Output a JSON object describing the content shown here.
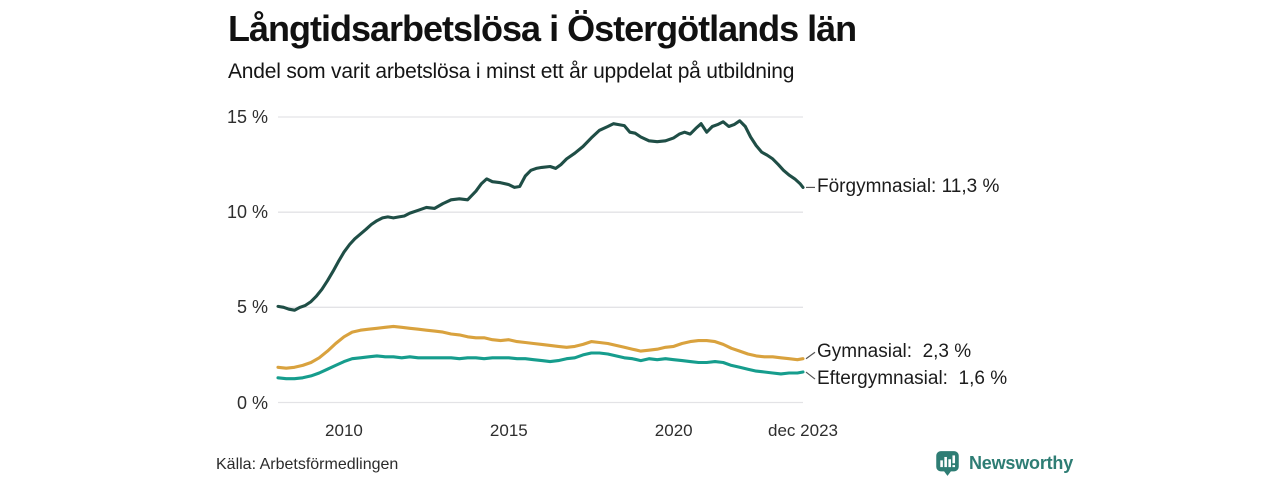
{
  "header": {
    "title": "Långtidsarbetslösa i Östergötlands län",
    "subtitle": "Andel som varit arbetslösa i minst ett år uppdelat på utbildning"
  },
  "chart_data": {
    "type": "line",
    "title": "Långtidsarbetslösa i Östergötlands län",
    "subtitle": "Andel som varit arbetslösa i minst ett år uppdelat på utbildning",
    "unit": "%",
    "grid": "horizontal",
    "legend_position": "right-end-labels",
    "x_axis": {
      "range": [
        2008.0,
        2023.92
      ],
      "ticks": [
        {
          "label": "2010",
          "year": 2010
        },
        {
          "label": "2015",
          "year": 2015
        },
        {
          "label": "2020",
          "year": 2020
        },
        {
          "label": "dec 2023",
          "year": 2023.92
        }
      ]
    },
    "y_axis": {
      "ylim": [
        0,
        15
      ],
      "ticks": [
        {
          "label": "0 %",
          "value": 0
        },
        {
          "label": "5 %",
          "value": 5
        },
        {
          "label": "10 %",
          "value": 10
        },
        {
          "label": "15 %",
          "value": 15
        }
      ]
    },
    "series": [
      {
        "name": "Förgymnasial",
        "end_label": "Förgymnasial: 11,3 %",
        "end_value": "11,3 %",
        "color": "#1f4e46",
        "points": [
          [
            2008.0,
            5.05
          ],
          [
            2008.17,
            5.0
          ],
          [
            2008.33,
            4.9
          ],
          [
            2008.5,
            4.85
          ],
          [
            2008.67,
            5.0
          ],
          [
            2008.83,
            5.1
          ],
          [
            2009.0,
            5.3
          ],
          [
            2009.17,
            5.6
          ],
          [
            2009.33,
            5.95
          ],
          [
            2009.5,
            6.4
          ],
          [
            2009.67,
            6.9
          ],
          [
            2009.83,
            7.4
          ],
          [
            2010.0,
            7.9
          ],
          [
            2010.17,
            8.3
          ],
          [
            2010.33,
            8.6
          ],
          [
            2010.5,
            8.85
          ],
          [
            2010.67,
            9.1
          ],
          [
            2010.83,
            9.35
          ],
          [
            2011.0,
            9.55
          ],
          [
            2011.17,
            9.7
          ],
          [
            2011.33,
            9.75
          ],
          [
            2011.5,
            9.7
          ],
          [
            2011.67,
            9.75
          ],
          [
            2011.83,
            9.8
          ],
          [
            2012.0,
            9.95
          ],
          [
            2012.25,
            10.1
          ],
          [
            2012.5,
            10.25
          ],
          [
            2012.75,
            10.2
          ],
          [
            2013.0,
            10.45
          ],
          [
            2013.25,
            10.65
          ],
          [
            2013.5,
            10.7
          ],
          [
            2013.75,
            10.65
          ],
          [
            2014.0,
            11.1
          ],
          [
            2014.17,
            11.5
          ],
          [
            2014.33,
            11.75
          ],
          [
            2014.5,
            11.6
          ],
          [
            2014.75,
            11.55
          ],
          [
            2015.0,
            11.45
          ],
          [
            2015.17,
            11.3
          ],
          [
            2015.33,
            11.35
          ],
          [
            2015.5,
            11.9
          ],
          [
            2015.67,
            12.2
          ],
          [
            2015.83,
            12.3
          ],
          [
            2016.0,
            12.35
          ],
          [
            2016.25,
            12.4
          ],
          [
            2016.42,
            12.3
          ],
          [
            2016.58,
            12.5
          ],
          [
            2016.75,
            12.8
          ],
          [
            2017.0,
            13.1
          ],
          [
            2017.25,
            13.45
          ],
          [
            2017.5,
            13.9
          ],
          [
            2017.75,
            14.3
          ],
          [
            2018.0,
            14.5
          ],
          [
            2018.17,
            14.65
          ],
          [
            2018.33,
            14.6
          ],
          [
            2018.5,
            14.55
          ],
          [
            2018.67,
            14.2
          ],
          [
            2018.83,
            14.15
          ],
          [
            2019.0,
            13.95
          ],
          [
            2019.25,
            13.75
          ],
          [
            2019.5,
            13.7
          ],
          [
            2019.75,
            13.75
          ],
          [
            2020.0,
            13.9
          ],
          [
            2020.17,
            14.1
          ],
          [
            2020.33,
            14.2
          ],
          [
            2020.5,
            14.1
          ],
          [
            2020.67,
            14.4
          ],
          [
            2020.83,
            14.65
          ],
          [
            2021.0,
            14.2
          ],
          [
            2021.17,
            14.5
          ],
          [
            2021.33,
            14.6
          ],
          [
            2021.5,
            14.75
          ],
          [
            2021.67,
            14.5
          ],
          [
            2021.83,
            14.6
          ],
          [
            2022.0,
            14.8
          ],
          [
            2022.17,
            14.5
          ],
          [
            2022.33,
            13.95
          ],
          [
            2022.5,
            13.5
          ],
          [
            2022.67,
            13.15
          ],
          [
            2022.83,
            13.0
          ],
          [
            2023.0,
            12.8
          ],
          [
            2023.17,
            12.5
          ],
          [
            2023.33,
            12.2
          ],
          [
            2023.5,
            11.95
          ],
          [
            2023.67,
            11.75
          ],
          [
            2023.83,
            11.5
          ],
          [
            2023.92,
            11.3
          ]
        ]
      },
      {
        "name": "Gymnasial",
        "end_label": "Gymnasial:  2,3 %",
        "end_value": "2,3 %",
        "color": "#d9a23e",
        "points": [
          [
            2008.0,
            1.85
          ],
          [
            2008.25,
            1.8
          ],
          [
            2008.5,
            1.85
          ],
          [
            2008.75,
            1.95
          ],
          [
            2009.0,
            2.1
          ],
          [
            2009.25,
            2.35
          ],
          [
            2009.5,
            2.7
          ],
          [
            2009.75,
            3.1
          ],
          [
            2010.0,
            3.45
          ],
          [
            2010.25,
            3.7
          ],
          [
            2010.5,
            3.8
          ],
          [
            2010.75,
            3.85
          ],
          [
            2011.0,
            3.9
          ],
          [
            2011.25,
            3.95
          ],
          [
            2011.5,
            4.0
          ],
          [
            2011.75,
            3.95
          ],
          [
            2012.0,
            3.9
          ],
          [
            2012.25,
            3.85
          ],
          [
            2012.5,
            3.8
          ],
          [
            2012.75,
            3.75
          ],
          [
            2013.0,
            3.7
          ],
          [
            2013.25,
            3.6
          ],
          [
            2013.5,
            3.55
          ],
          [
            2013.75,
            3.45
          ],
          [
            2014.0,
            3.4
          ],
          [
            2014.25,
            3.4
          ],
          [
            2014.5,
            3.3
          ],
          [
            2014.75,
            3.25
          ],
          [
            2015.0,
            3.3
          ],
          [
            2015.25,
            3.2
          ],
          [
            2015.5,
            3.15
          ],
          [
            2015.75,
            3.1
          ],
          [
            2016.0,
            3.05
          ],
          [
            2016.25,
            3.0
          ],
          [
            2016.5,
            2.95
          ],
          [
            2016.75,
            2.9
          ],
          [
            2017.0,
            2.95
          ],
          [
            2017.25,
            3.05
          ],
          [
            2017.5,
            3.2
          ],
          [
            2017.75,
            3.15
          ],
          [
            2018.0,
            3.1
          ],
          [
            2018.25,
            3.0
          ],
          [
            2018.5,
            2.9
          ],
          [
            2018.75,
            2.8
          ],
          [
            2019.0,
            2.7
          ],
          [
            2019.25,
            2.75
          ],
          [
            2019.5,
            2.8
          ],
          [
            2019.75,
            2.9
          ],
          [
            2020.0,
            2.95
          ],
          [
            2020.25,
            3.1
          ],
          [
            2020.5,
            3.2
          ],
          [
            2020.75,
            3.25
          ],
          [
            2021.0,
            3.25
          ],
          [
            2021.25,
            3.2
          ],
          [
            2021.5,
            3.05
          ],
          [
            2021.75,
            2.85
          ],
          [
            2022.0,
            2.7
          ],
          [
            2022.25,
            2.55
          ],
          [
            2022.5,
            2.45
          ],
          [
            2022.75,
            2.4
          ],
          [
            2023.0,
            2.4
          ],
          [
            2023.25,
            2.35
          ],
          [
            2023.5,
            2.3
          ],
          [
            2023.75,
            2.25
          ],
          [
            2023.92,
            2.3
          ]
        ]
      },
      {
        "name": "Eftergymnasial",
        "end_label": "Eftergymnasial:  1,6 %",
        "end_value": "1,6 %",
        "color": "#169d8d",
        "points": [
          [
            2008.0,
            1.3
          ],
          [
            2008.25,
            1.25
          ],
          [
            2008.5,
            1.25
          ],
          [
            2008.75,
            1.3
          ],
          [
            2009.0,
            1.4
          ],
          [
            2009.25,
            1.55
          ],
          [
            2009.5,
            1.75
          ],
          [
            2009.75,
            1.95
          ],
          [
            2010.0,
            2.15
          ],
          [
            2010.25,
            2.3
          ],
          [
            2010.5,
            2.35
          ],
          [
            2010.75,
            2.4
          ],
          [
            2011.0,
            2.45
          ],
          [
            2011.25,
            2.4
          ],
          [
            2011.5,
            2.4
          ],
          [
            2011.75,
            2.35
          ],
          [
            2012.0,
            2.4
          ],
          [
            2012.25,
            2.35
          ],
          [
            2012.5,
            2.35
          ],
          [
            2012.75,
            2.35
          ],
          [
            2013.0,
            2.35
          ],
          [
            2013.25,
            2.35
          ],
          [
            2013.5,
            2.3
          ],
          [
            2013.75,
            2.35
          ],
          [
            2014.0,
            2.35
          ],
          [
            2014.25,
            2.3
          ],
          [
            2014.5,
            2.35
          ],
          [
            2014.75,
            2.35
          ],
          [
            2015.0,
            2.35
          ],
          [
            2015.25,
            2.3
          ],
          [
            2015.5,
            2.3
          ],
          [
            2015.75,
            2.25
          ],
          [
            2016.0,
            2.2
          ],
          [
            2016.25,
            2.15
          ],
          [
            2016.5,
            2.2
          ],
          [
            2016.75,
            2.3
          ],
          [
            2017.0,
            2.35
          ],
          [
            2017.25,
            2.5
          ],
          [
            2017.5,
            2.6
          ],
          [
            2017.75,
            2.6
          ],
          [
            2018.0,
            2.55
          ],
          [
            2018.25,
            2.45
          ],
          [
            2018.5,
            2.35
          ],
          [
            2018.75,
            2.3
          ],
          [
            2019.0,
            2.2
          ],
          [
            2019.25,
            2.3
          ],
          [
            2019.5,
            2.25
          ],
          [
            2019.75,
            2.3
          ],
          [
            2020.0,
            2.25
          ],
          [
            2020.25,
            2.2
          ],
          [
            2020.5,
            2.15
          ],
          [
            2020.75,
            2.1
          ],
          [
            2021.0,
            2.1
          ],
          [
            2021.25,
            2.15
          ],
          [
            2021.5,
            2.1
          ],
          [
            2021.75,
            1.95
          ],
          [
            2022.0,
            1.85
          ],
          [
            2022.25,
            1.75
          ],
          [
            2022.5,
            1.65
          ],
          [
            2022.75,
            1.6
          ],
          [
            2023.0,
            1.55
          ],
          [
            2023.25,
            1.5
          ],
          [
            2023.5,
            1.55
          ],
          [
            2023.75,
            1.55
          ],
          [
            2023.92,
            1.6
          ]
        ]
      }
    ],
    "colors": {
      "grid": "#e3e3e6",
      "axis_text": "#2e2e2e",
      "label_text": "#1c1c1c"
    }
  },
  "footer": {
    "source": "Källa: Arbetsförmedlingen",
    "brand": "Newsworthy",
    "brand_color": "#2e7d74",
    "logo_icon": "bar-chart-bubble-icon"
  }
}
